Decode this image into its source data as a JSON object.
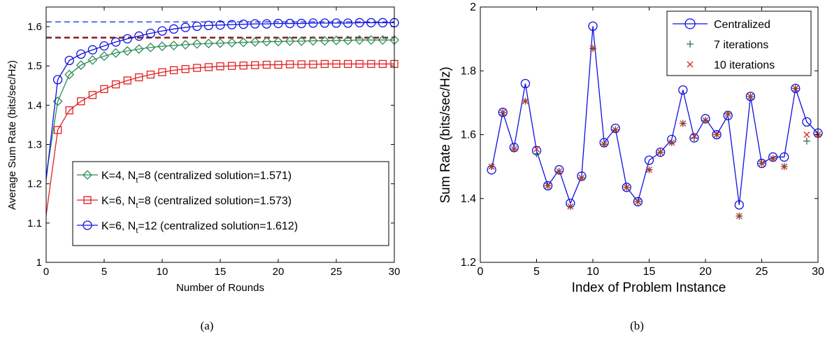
{
  "chart_data": [
    {
      "type": "line",
      "caption": "(a)",
      "xlabel": "Number of Rounds",
      "ylabel": "Average Sum Rate (bits/sec/Hz)",
      "xlim": [
        0,
        30
      ],
      "ylim": [
        1,
        1.65
      ],
      "xticks": [
        "0",
        "5",
        "10",
        "15",
        "20",
        "25",
        "30"
      ],
      "yticks": [
        "1",
        "1.1",
        "1.2",
        "1.3",
        "1.4",
        "1.5",
        "1.6"
      ],
      "grid": false,
      "legend_position": "bottom-right",
      "x": [
        0,
        1,
        2,
        3,
        4,
        5,
        6,
        7,
        8,
        9,
        10,
        11,
        12,
        13,
        14,
        15,
        16,
        17,
        18,
        19,
        20,
        21,
        22,
        23,
        24,
        25,
        26,
        27,
        28,
        29,
        30
      ],
      "series": [
        {
          "legend_main": "K=4, N",
          "legend_sub": "t",
          "legend_rest": "=8 (centralized solution=1.571)",
          "color": "#2e8b57",
          "marker": "diamond",
          "reference": 1.571,
          "reference_color": "#8b2323",
          "values": [
            1.22,
            1.41,
            1.478,
            1.502,
            1.515,
            1.525,
            1.533,
            1.538,
            1.543,
            1.547,
            1.55,
            1.552,
            1.554,
            1.556,
            1.557,
            1.558,
            1.559,
            1.56,
            1.561,
            1.562,
            1.562,
            1.563,
            1.563,
            1.564,
            1.564,
            1.565,
            1.565,
            1.566,
            1.566,
            1.566,
            1.566
          ]
        },
        {
          "legend_main": "K=6, N",
          "legend_sub": "t",
          "legend_rest": "=8 (centralized solution=1.573)",
          "color": "#e02020",
          "marker": "square",
          "reference": 1.573,
          "reference_color": "#8b2323",
          "values": [
            1.12,
            1.337,
            1.387,
            1.41,
            1.426,
            1.441,
            1.453,
            1.463,
            1.471,
            1.478,
            1.484,
            1.489,
            1.492,
            1.495,
            1.497,
            1.499,
            1.5,
            1.501,
            1.502,
            1.503,
            1.503,
            1.504,
            1.504,
            1.504,
            1.505,
            1.505,
            1.505,
            1.505,
            1.505,
            1.505,
            1.505
          ]
        },
        {
          "legend_main": "K=6, N",
          "legend_sub": "t",
          "legend_rest": "=12 (centralized solution=1.612)",
          "color": "#1010e0",
          "marker": "circle",
          "reference": 1.612,
          "reference_color": "#3355ee",
          "values": [
            1.21,
            1.465,
            1.514,
            1.53,
            1.541,
            1.551,
            1.561,
            1.569,
            1.576,
            1.583,
            1.589,
            1.594,
            1.598,
            1.601,
            1.603,
            1.604,
            1.605,
            1.606,
            1.607,
            1.607,
            1.608,
            1.608,
            1.608,
            1.609,
            1.609,
            1.609,
            1.609,
            1.61,
            1.61,
            1.61,
            1.61
          ]
        }
      ]
    },
    {
      "type": "line",
      "caption": "(b)",
      "xlabel": "Index of Problem Instance",
      "ylabel": "Sum Rate (bits/sec/Hz)",
      "xlim": [
        0,
        30
      ],
      "ylim": [
        1.2,
        2
      ],
      "xticks": [
        "0",
        "5",
        "10",
        "15",
        "20",
        "25",
        "30"
      ],
      "yticks": [
        "1.2",
        "1.4",
        "1.6",
        "1.8",
        "2"
      ],
      "grid": false,
      "legend_position": "top-right",
      "x": [
        1,
        2,
        3,
        4,
        5,
        6,
        7,
        8,
        9,
        10,
        11,
        12,
        13,
        14,
        15,
        16,
        17,
        18,
        19,
        20,
        21,
        22,
        23,
        24,
        25,
        26,
        27,
        28,
        29,
        30
      ],
      "series": [
        {
          "name": "Centralized",
          "color": "#1010e0",
          "marker": "circle",
          "values": [
            1.49,
            1.67,
            1.56,
            1.76,
            1.55,
            1.44,
            1.49,
            1.385,
            1.47,
            1.94,
            1.575,
            1.62,
            1.435,
            1.39,
            1.52,
            1.545,
            1.585,
            1.74,
            1.59,
            1.65,
            1.6,
            1.66,
            1.38,
            1.72,
            1.51,
            1.53,
            1.53,
            1.745,
            1.64,
            1.605
          ]
        },
        {
          "name": "7 iterations",
          "color": "#2e6b4a",
          "marker": "plus",
          "values": [
            1.5,
            1.67,
            1.555,
            1.705,
            1.54,
            1.44,
            1.485,
            1.375,
            1.465,
            1.87,
            1.57,
            1.615,
            1.435,
            1.39,
            1.49,
            1.545,
            1.575,
            1.635,
            1.59,
            1.645,
            1.6,
            1.665,
            1.345,
            1.72,
            1.51,
            1.525,
            1.5,
            1.745,
            1.58,
            1.6
          ]
        },
        {
          "name": "10 iterations",
          "color": "#e02020",
          "marker": "x",
          "values": [
            1.5,
            1.67,
            1.555,
            1.705,
            1.555,
            1.44,
            1.485,
            1.375,
            1.465,
            1.87,
            1.57,
            1.615,
            1.435,
            1.39,
            1.49,
            1.545,
            1.575,
            1.635,
            1.595,
            1.645,
            1.6,
            1.665,
            1.345,
            1.72,
            1.51,
            1.525,
            1.5,
            1.745,
            1.6,
            1.6
          ]
        }
      ]
    }
  ]
}
